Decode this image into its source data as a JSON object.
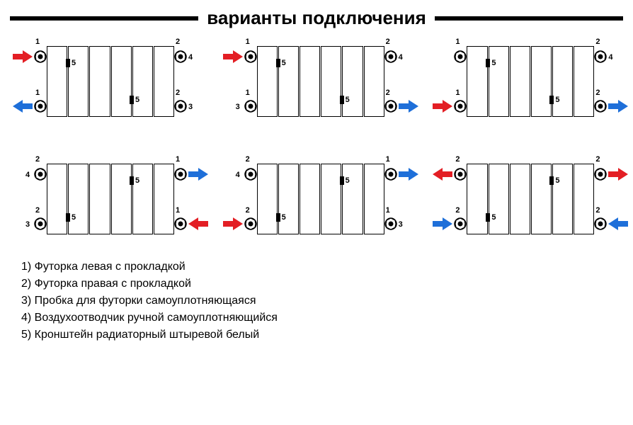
{
  "title": "варианты подключения",
  "colors": {
    "red": "#e31e24",
    "blue": "#1e6fd9",
    "black": "#000000",
    "white": "#ffffff"
  },
  "sections_per_radiator": 6,
  "legend": [
    "1) Футорка левая с прокладкой",
    "2) Футорка правая с прокладкой",
    "3) Пробка для футорки самоуплотняющаяся",
    "4) Воздухоотводчик ручной самоуплотняющийся",
    "5) Кронштейн радиаторный штыревой белый"
  ],
  "bracket_positions_top_row": [
    {
      "section": 1,
      "side": "right",
      "v": "top"
    },
    {
      "section": 4,
      "side": "right",
      "v": "bottom"
    }
  ],
  "bracket_positions_bottom_row": [
    {
      "section": 1,
      "side": "right",
      "v": "bottom"
    },
    {
      "section": 4,
      "side": "right",
      "v": "top"
    }
  ],
  "diagrams": [
    {
      "row": "top",
      "fittings": {
        "tl": {
          "num": "1",
          "arrow": "in",
          "color": "red"
        },
        "tr": {
          "num": "2",
          "plug": "4"
        },
        "bl": {
          "num": "1",
          "arrow": "out",
          "color": "blue"
        },
        "br": {
          "num": "2",
          "plug": "3"
        }
      }
    },
    {
      "row": "top",
      "fittings": {
        "tl": {
          "num": "1",
          "arrow": "in",
          "color": "red"
        },
        "tr": {
          "num": "2",
          "plug": "4"
        },
        "bl": {
          "num": "1",
          "plug": "3"
        },
        "br": {
          "num": "2",
          "arrow": "out",
          "color": "blue"
        }
      }
    },
    {
      "row": "top",
      "fittings": {
        "tl": {
          "num": "1"
        },
        "tr": {
          "num": "2",
          "plug": "4"
        },
        "bl": {
          "num": "1",
          "arrow": "in",
          "color": "red"
        },
        "br": {
          "num": "2",
          "arrow": "out",
          "color": "blue"
        }
      }
    },
    {
      "row": "bottom",
      "fittings": {
        "tl": {
          "num": "2",
          "plug": "4"
        },
        "tr": {
          "num": "1",
          "arrow": "out",
          "color": "blue"
        },
        "bl": {
          "num": "2",
          "plug": "3"
        },
        "br": {
          "num": "1",
          "arrow": "in",
          "color": "red"
        }
      }
    },
    {
      "row": "bottom",
      "fittings": {
        "tl": {
          "num": "2",
          "plug": "4"
        },
        "tr": {
          "num": "1",
          "arrow": "out",
          "color": "blue"
        },
        "bl": {
          "num": "2",
          "arrow": "in",
          "color": "red"
        },
        "br": {
          "num": "1",
          "plug": "3"
        }
      }
    },
    {
      "row": "bottom",
      "fittings": {
        "tl": {
          "num": "2",
          "arrow": "out",
          "color": "red"
        },
        "tr": {
          "num": "2",
          "arrow": "out",
          "color": "red"
        },
        "bl": {
          "num": "2",
          "arrow": "in",
          "color": "blue"
        },
        "br": {
          "num": "2",
          "arrow": "in",
          "color": "blue"
        }
      }
    }
  ]
}
